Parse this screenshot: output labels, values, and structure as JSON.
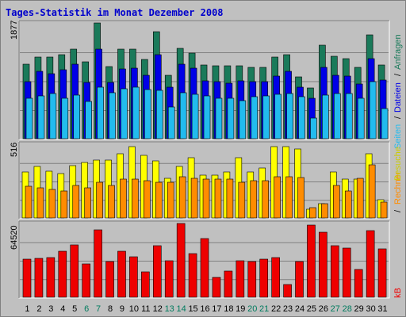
{
  "title": "Tages-Statistik im Monat Dezember 2008",
  "colors": {
    "background": "#c0c0c0",
    "title": "#0000cc",
    "anfragen": "#1a7a5a",
    "dateien": "#0000e6",
    "seiten": "#22bbee",
    "besuche": "#ffff00",
    "rechner": "#ff8c00",
    "kb": "#ee0000",
    "weekend_label": "#007b5e"
  },
  "chart_data": [
    {
      "type": "bar",
      "name": "hits-files-pages",
      "categories": [
        "1",
        "2",
        "3",
        "4",
        "5",
        "6",
        "7",
        "8",
        "9",
        "10",
        "11",
        "12",
        "13",
        "14",
        "15",
        "16",
        "17",
        "18",
        "19",
        "20",
        "21",
        "22",
        "23",
        "24",
        "25",
        "26",
        "27",
        "28",
        "29",
        "30",
        "31"
      ],
      "ymax_label": "1877",
      "ylim": [
        0,
        1877
      ],
      "series": [
        {
          "name": "Anfragen",
          "values": [
            1210,
            1330,
            1330,
            1360,
            1450,
            1250,
            1877,
            1170,
            1450,
            1450,
            1290,
            1730,
            1030,
            1460,
            1390,
            1200,
            1180,
            1180,
            1180,
            1160,
            1160,
            1330,
            1360,
            1000,
            820,
            1520,
            1340,
            1300,
            1160,
            1690,
            1200
          ]
        },
        {
          "name": "Dateien",
          "values": [
            930,
            1090,
            1050,
            1120,
            1210,
            910,
            1450,
            910,
            1130,
            1140,
            1030,
            1360,
            840,
            1210,
            1140,
            940,
            930,
            900,
            940,
            920,
            920,
            1020,
            1090,
            830,
            660,
            1160,
            1030,
            1020,
            890,
            1300,
            950
          ]
        },
        {
          "name": "Seiten",
          "values": [
            660,
            690,
            730,
            650,
            710,
            610,
            840,
            750,
            810,
            830,
            800,
            790,
            510,
            740,
            720,
            700,
            650,
            650,
            620,
            680,
            690,
            720,
            730,
            680,
            340,
            710,
            730,
            730,
            660,
            920,
            490
          ]
        }
      ],
      "right_labels": [
        "Anfragen",
        "Dateien",
        "Seiten"
      ],
      "right_separators": [
        "/",
        "/"
      ]
    },
    {
      "type": "bar",
      "name": "visits-hosts",
      "categories": [
        "1",
        "2",
        "3",
        "4",
        "5",
        "6",
        "7",
        "8",
        "9",
        "10",
        "11",
        "12",
        "13",
        "14",
        "15",
        "16",
        "17",
        "18",
        "19",
        "20",
        "21",
        "22",
        "23",
        "24",
        "25",
        "26",
        "27",
        "28",
        "29",
        "30",
        "31"
      ],
      "ymax_label": "516",
      "ylim": [
        0,
        516
      ],
      "series": [
        {
          "name": "Besuche",
          "values": [
            320,
            360,
            325,
            310,
            365,
            390,
            405,
            405,
            450,
            500,
            440,
            400,
            280,
            360,
            420,
            300,
            300,
            320,
            420,
            320,
            350,
            500,
            500,
            480,
            60,
            100,
            320,
            270,
            270,
            450,
            130
          ]
        },
        {
          "name": "Rechner",
          "values": [
            220,
            210,
            200,
            190,
            230,
            210,
            250,
            230,
            270,
            270,
            260,
            250,
            250,
            290,
            280,
            270,
            270,
            270,
            250,
            260,
            260,
            290,
            290,
            285,
            70,
            100,
            230,
            190,
            280,
            370,
            110
          ]
        }
      ],
      "right_labels": [
        "Rechner",
        "Besuche"
      ],
      "right_separators": [
        "/",
        "/"
      ]
    },
    {
      "type": "bar",
      "name": "kb",
      "categories": [
        "1",
        "2",
        "3",
        "4",
        "5",
        "6",
        "7",
        "8",
        "9",
        "10",
        "11",
        "12",
        "13",
        "14",
        "15",
        "16",
        "17",
        "18",
        "19",
        "20",
        "21",
        "22",
        "23",
        "24",
        "25",
        "26",
        "27",
        "28",
        "29",
        "30",
        "31"
      ],
      "ymax_label": "64520",
      "ylim": [
        0,
        64520
      ],
      "series": [
        {
          "name": "kB",
          "values": [
            33000,
            34000,
            34500,
            40000,
            46000,
            29000,
            59000,
            31000,
            40000,
            35500,
            22500,
            45000,
            32000,
            64520,
            38000,
            51000,
            17000,
            23000,
            32000,
            31000,
            33000,
            35000,
            11000,
            31000,
            63000,
            57000,
            45000,
            43000,
            24000,
            58000,
            42500
          ]
        }
      ],
      "right_labels": [
        "kB"
      ],
      "right_separators": []
    }
  ],
  "x_labels": [
    "1",
    "2",
    "3",
    "4",
    "5",
    "6",
    "7",
    "8",
    "9",
    "10",
    "11",
    "12",
    "13",
    "14",
    "15",
    "16",
    "17",
    "18",
    "19",
    "20",
    "21",
    "22",
    "23",
    "24",
    "25",
    "26",
    "27",
    "28",
    "29",
    "30",
    "31"
  ],
  "weekend_days": [
    "6",
    "7",
    "13",
    "14",
    "20",
    "21",
    "27",
    "28"
  ]
}
